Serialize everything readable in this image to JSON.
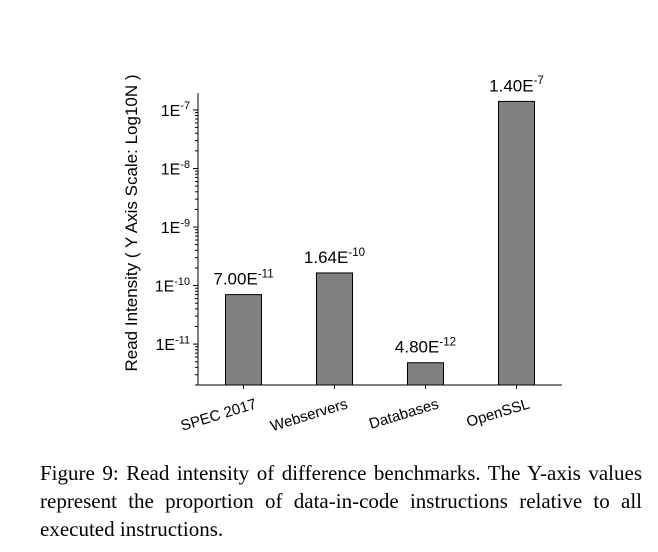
{
  "chart_data": {
    "type": "bar",
    "ylabel": "Read Intensity ( Y Axis Scale: Log10N )",
    "y_scale": "log",
    "ylim": [
      2e-12,
      1.8e-07
    ],
    "categories": [
      "SPEC 2017",
      "Webservers",
      "Databases",
      "OpenSSL"
    ],
    "values": [
      7e-11,
      1.64e-10,
      4.8e-12,
      1.4e-07
    ],
    "bar_labels": [
      {
        "mantissa": "7.00E",
        "exponent": "-11"
      },
      {
        "mantissa": "1.64E",
        "exponent": "-10"
      },
      {
        "mantissa": "4.80E",
        "exponent": "-12"
      },
      {
        "mantissa": "1.40E",
        "exponent": "-7"
      }
    ],
    "yticks": [
      {
        "value": 1e-11,
        "base": "1E",
        "exponent": "-11"
      },
      {
        "value": 1e-10,
        "base": "1E",
        "exponent": "-10"
      },
      {
        "value": 1e-09,
        "base": "1E",
        "exponent": "-9"
      },
      {
        "value": 1e-08,
        "base": "1E",
        "exponent": "-8"
      },
      {
        "value": 1e-07,
        "base": "1E",
        "exponent": "-7"
      }
    ],
    "bar_color": "#808080",
    "grid": false,
    "legend": "none"
  },
  "caption": "Figure 9: Read intensity of difference benchmarks. The Y-axis values represent the proportion of data-in-code instructions relative to all executed instructions."
}
